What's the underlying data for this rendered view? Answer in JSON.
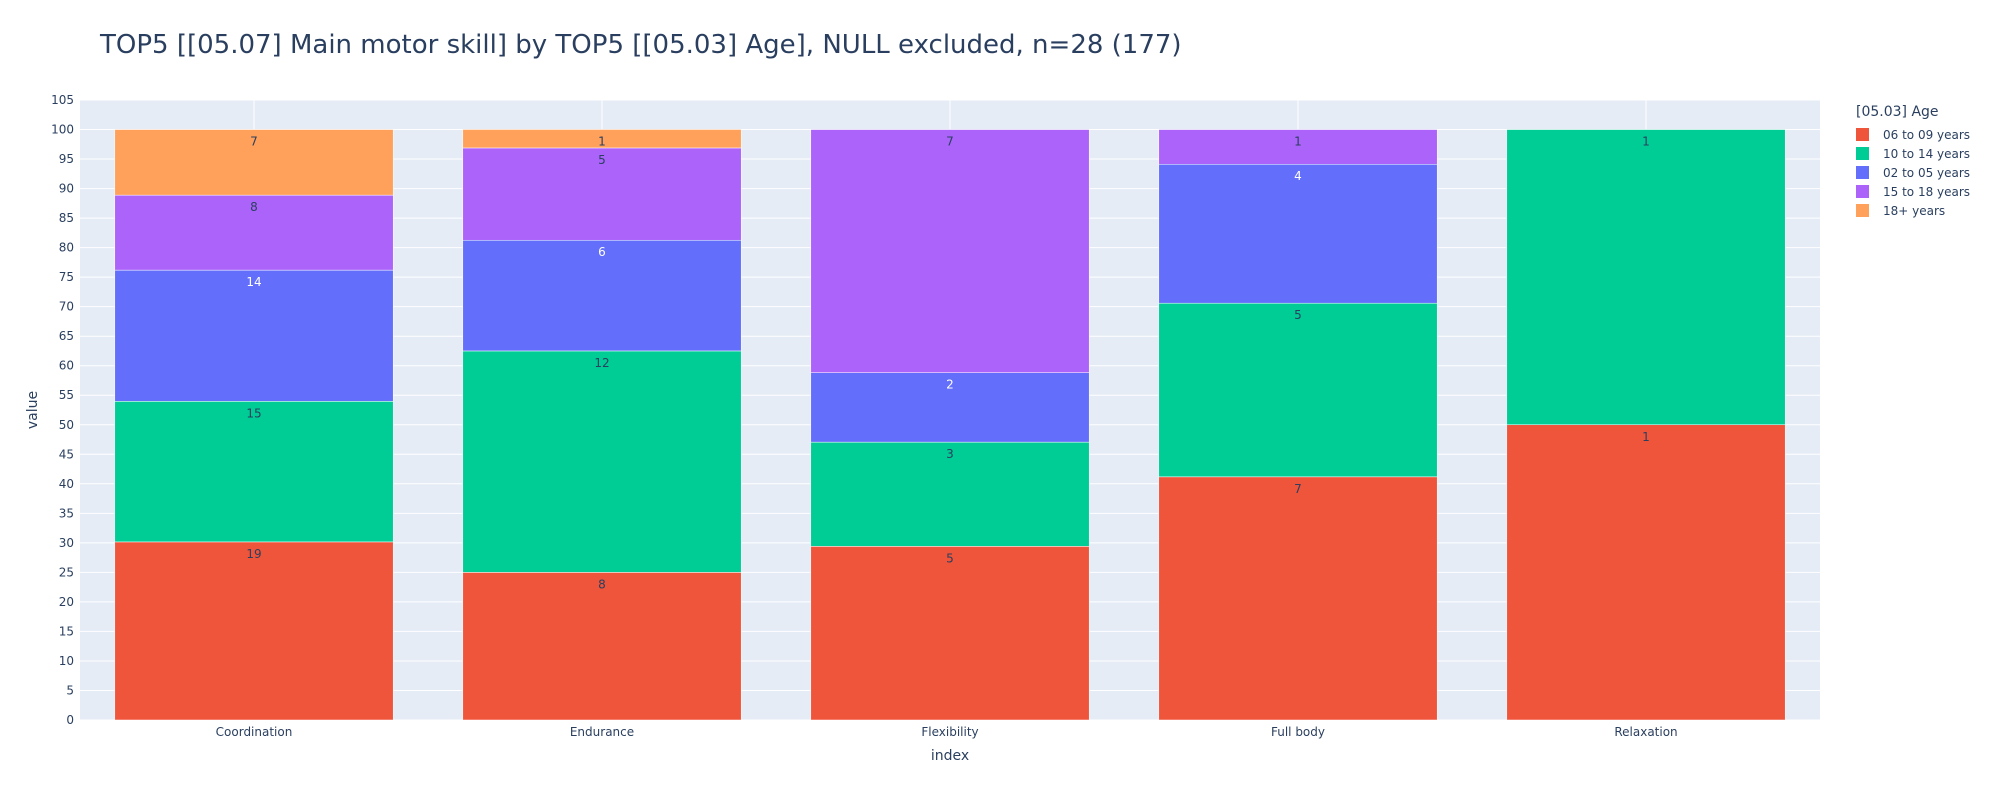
{
  "chart_data": {
    "type": "bar",
    "barmode": "stack",
    "title": "TOP5 [[05.07] Main motor skill] by TOP5 [[05.03] Age], NULL excluded, n=28 (177)",
    "xlabel": "index",
    "ylabel": "value",
    "ylim": [
      0,
      105
    ],
    "ytick_step": 5,
    "grid": true,
    "legend_title": "[05.03] Age",
    "legend_position": "right",
    "categories": [
      "Coordination",
      "Endurance",
      "Flexibility",
      "Full body",
      "Relaxation"
    ],
    "series": [
      {
        "name": "06 to 09 years",
        "color": "#EF553B",
        "label_color": "#2a3f5f",
        "values": [
          30.16,
          25.0,
          29.41,
          41.18,
          50.0
        ],
        "labels": [
          "19",
          "8",
          "5",
          "7",
          "1"
        ]
      },
      {
        "name": "10 to 14 years",
        "color": "#00CC96",
        "label_color": "#2a3f5f",
        "values": [
          23.81,
          37.5,
          17.65,
          29.41,
          50.0
        ],
        "labels": [
          "15",
          "12",
          "3",
          "5",
          "1"
        ]
      },
      {
        "name": "02 to 05 years",
        "color": "#636EFA",
        "label_color": "#ffffff",
        "values": [
          22.22,
          18.75,
          11.76,
          23.53,
          0
        ],
        "labels": [
          "14",
          "6",
          "2",
          "4",
          ""
        ]
      },
      {
        "name": "15 to 18 years",
        "color": "#AB63FA",
        "label_color": "#2a3f5f",
        "values": [
          12.7,
          15.63,
          41.18,
          5.88,
          0
        ],
        "labels": [
          "8",
          "5",
          "7",
          "1",
          ""
        ]
      },
      {
        "name": "18+ years",
        "color": "#FFA15A",
        "label_color": "#2a3f5f",
        "values": [
          11.11,
          3.13,
          0,
          0,
          0
        ],
        "labels": [
          "7",
          "1",
          "",
          "",
          ""
        ]
      }
    ]
  }
}
